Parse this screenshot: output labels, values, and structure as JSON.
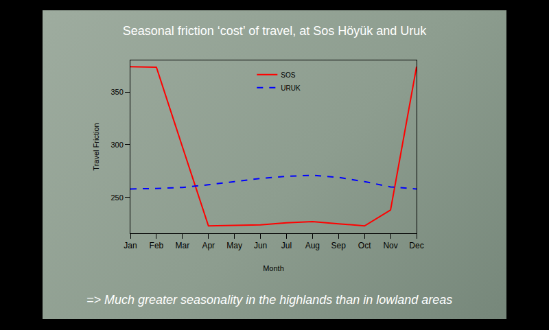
{
  "chart_data": {
    "type": "line",
    "title": "Seasonal friction ‘cost’ of travel, at Sos Höyük and Uruk",
    "x_label": "Month",
    "y_label": "Travel Friction",
    "annotation": "=> Much greater seasonality in the highlands than in lowland areas",
    "categories": [
      "Jan",
      "Feb",
      "Mar",
      "Apr",
      "May",
      "Jun",
      "Jul",
      "Aug",
      "Sep",
      "Oct",
      "Nov",
      "Dec"
    ],
    "series": [
      {
        "name": "SOS",
        "color": "#ff0000",
        "line_style": "solid",
        "values": [
          374,
          373.5,
          298,
          223,
          223.5,
          224,
          226,
          227,
          225,
          223,
          238,
          374
        ]
      },
      {
        "name": "URUK",
        "color": "#0000ff",
        "line_style": "dashed",
        "values": [
          258,
          258.5,
          259.5,
          262,
          265,
          268,
          270,
          271,
          269,
          265,
          260,
          258
        ]
      }
    ],
    "ylim": [
      216,
      380
    ],
    "yticks": [
      250,
      300,
      350
    ],
    "grid": false,
    "legend": "top"
  }
}
